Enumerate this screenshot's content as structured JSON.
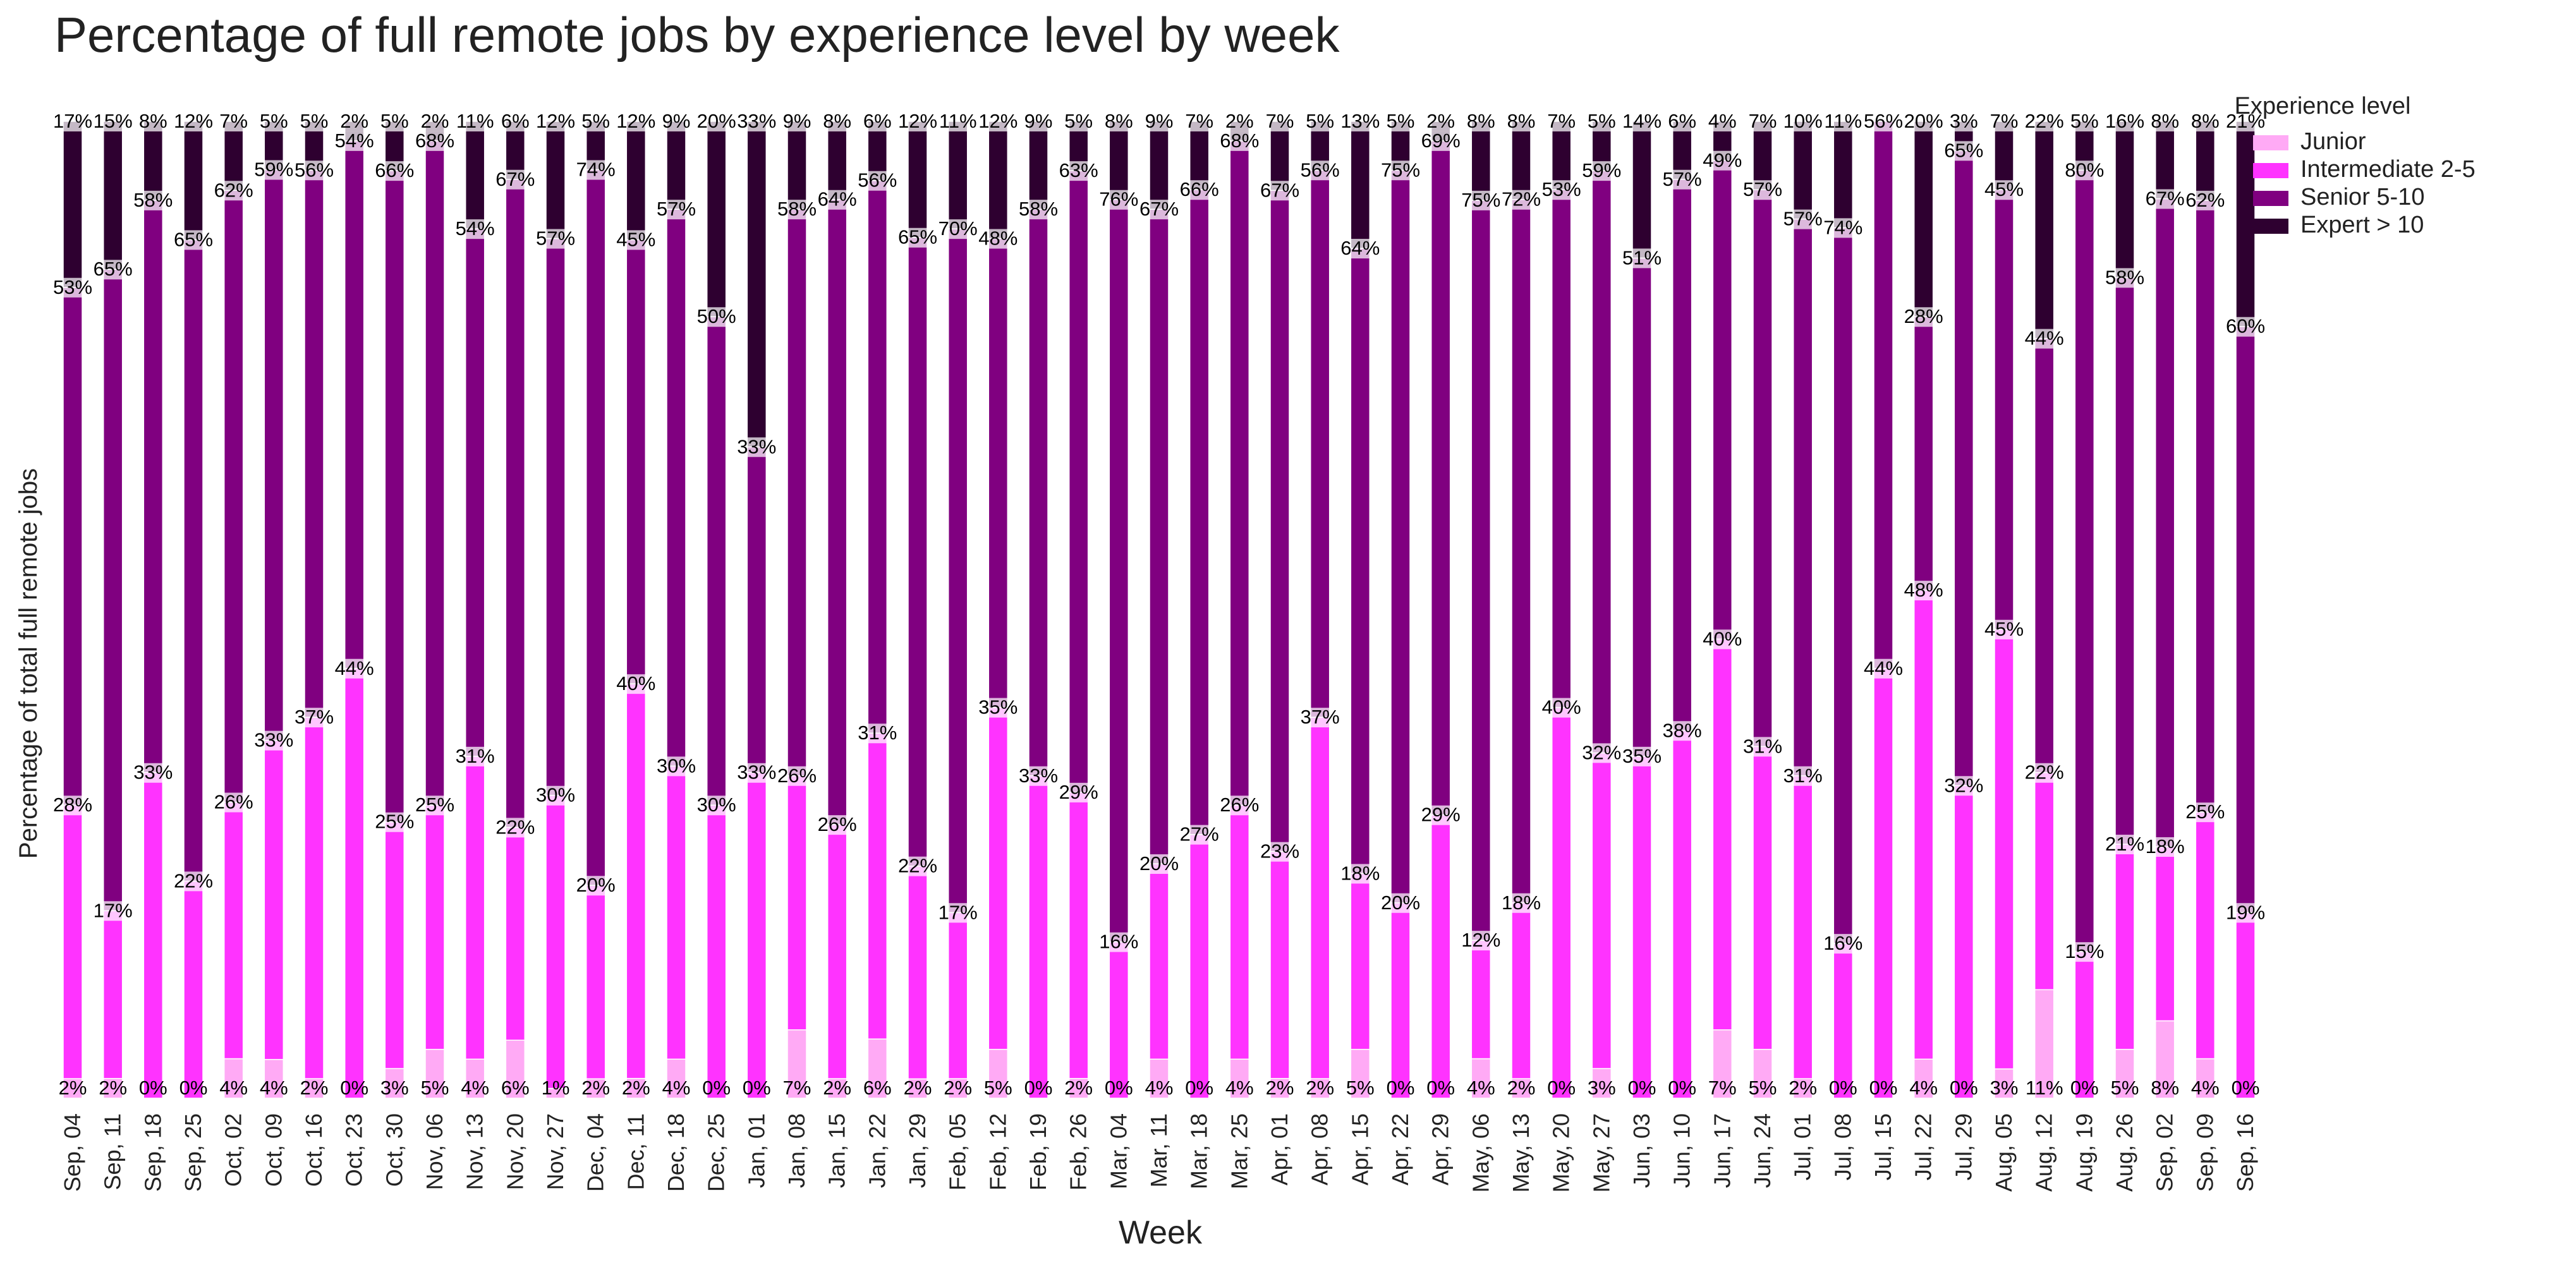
{
  "chart_data": {
    "type": "bar",
    "stacked": true,
    "title": "Percentage of full remote jobs by experience level by week",
    "xlabel": "Week",
    "ylabel": "Percentage of total full remote jobs",
    "ylim": [
      0,
      100
    ],
    "grid": false,
    "legend": {
      "title": "Experience level",
      "placement": "upper right, outside plot"
    },
    "categories": [
      "Sep, 04",
      "Sep, 11",
      "Sep, 18",
      "Sep, 25",
      "Oct, 02",
      "Oct, 09",
      "Oct, 16",
      "Oct, 23",
      "Oct, 30",
      "Nov, 06",
      "Nov, 13",
      "Nov, 20",
      "Nov, 27",
      "Dec, 04",
      "Dec, 11",
      "Dec, 18",
      "Dec, 25",
      "Jan, 01",
      "Jan, 08",
      "Jan, 15",
      "Jan, 22",
      "Jan, 29",
      "Feb, 05",
      "Feb, 12",
      "Feb, 19",
      "Feb, 26",
      "Mar, 04",
      "Mar, 11",
      "Mar, 18",
      "Mar, 25",
      "Apr, 01",
      "Apr, 08",
      "Apr, 15",
      "Apr, 22",
      "Apr, 29",
      "May, 06",
      "May, 13",
      "May, 20",
      "May, 27",
      "Jun, 03",
      "Jun, 10",
      "Jun, 17",
      "Jun, 24",
      "Jul, 01",
      "Jul, 08",
      "Jul, 15",
      "Jul, 22",
      "Jul, 29",
      "Aug, 05",
      "Aug, 12",
      "Aug, 19",
      "Aug, 26",
      "Sep, 02",
      "Sep, 09",
      "Sep, 16"
    ],
    "series": [
      {
        "name": "Junior",
        "color": "#ffaaf5",
        "values": [
          2,
          2,
          0,
          0,
          4,
          4,
          2,
          0,
          3,
          5,
          4,
          6,
          1,
          2,
          2,
          4,
          0,
          0,
          7,
          2,
          6,
          2,
          2,
          5,
          0,
          2,
          0,
          4,
          0,
          4,
          2,
          2,
          5,
          0,
          0,
          4,
          2,
          0,
          3,
          0,
          0,
          7,
          5,
          2,
          0,
          0,
          4,
          0,
          3,
          11,
          0,
          5,
          8,
          4,
          0
        ]
      },
      {
        "name": "Intermediate 2-5",
        "color": "#ff33ff",
        "values": [
          28,
          17,
          33,
          22,
          26,
          33,
          37,
          44,
          25,
          25,
          31,
          22,
          30,
          20,
          40,
          30,
          30,
          33,
          26,
          26,
          31,
          22,
          17,
          35,
          33,
          29,
          16,
          20,
          27,
          26,
          23,
          37,
          18,
          20,
          29,
          12,
          18,
          40,
          32,
          35,
          38,
          40,
          31,
          31,
          16,
          44,
          48,
          32,
          45,
          22,
          15,
          21,
          18,
          25,
          19
        ]
      },
      {
        "name": "Senior 5-10",
        "color": "#800080",
        "values": [
          53,
          65,
          58,
          65,
          62,
          59,
          56,
          54,
          66,
          68,
          54,
          67,
          57,
          74,
          45,
          57,
          50,
          33,
          58,
          64,
          56,
          65,
          70,
          48,
          58,
          63,
          76,
          67,
          66,
          68,
          67,
          56,
          64,
          75,
          69,
          75,
          72,
          53,
          59,
          51,
          57,
          49,
          57,
          57,
          74,
          56,
          28,
          65,
          45,
          44,
          80,
          58,
          67,
          62,
          60
        ]
      },
      {
        "name": "Expert > 10",
        "color": "#2e0030",
        "values": [
          17,
          15,
          8,
          12,
          7,
          5,
          5,
          2,
          5,
          2,
          11,
          6,
          12,
          5,
          12,
          9,
          20,
          33,
          9,
          8,
          6,
          12,
          11,
          12,
          9,
          5,
          8,
          9,
          7,
          2,
          7,
          5,
          13,
          5,
          2,
          8,
          8,
          7,
          5,
          14,
          6,
          4,
          7,
          10,
          11,
          0,
          20,
          3,
          7,
          22,
          5,
          16,
          8,
          8,
          21
        ]
      }
    ]
  }
}
